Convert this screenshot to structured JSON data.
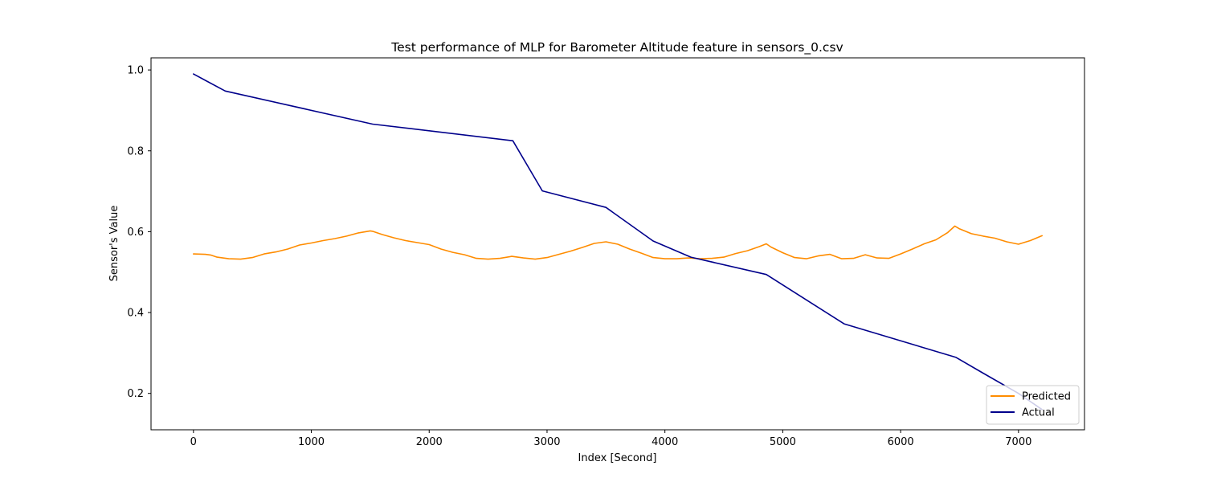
{
  "chart_data": {
    "type": "line",
    "title": "Test performance of MLP for Barometer Altitude feature in sensors_0.csv",
    "xlabel": "Index [Second]",
    "ylabel": "Sensor's Value",
    "xlim": [
      -360,
      7560
    ],
    "ylim": [
      0.11,
      1.03
    ],
    "xticks": [
      0,
      1000,
      2000,
      3000,
      4000,
      5000,
      6000,
      7000
    ],
    "yticks": [
      0.2,
      0.4,
      0.6,
      0.8,
      1.0
    ],
    "xtick_labels": [
      "0",
      "1000",
      "2000",
      "3000",
      "4000",
      "5000",
      "6000",
      "7000"
    ],
    "ytick_labels": [
      "0.2",
      "0.4",
      "0.6",
      "0.8",
      "1.0"
    ],
    "grid": false,
    "legend_position": "lower-right",
    "series": [
      {
        "name": "Predicted",
        "color": "#ff8c00",
        "x": [
          0,
          100,
          150,
          200,
          300,
          400,
          500,
          600,
          700,
          800,
          900,
          1000,
          1100,
          1200,
          1300,
          1400,
          1500,
          1520,
          1600,
          1700,
          1800,
          1900,
          2000,
          2100,
          2200,
          2300,
          2400,
          2500,
          2600,
          2700,
          2800,
          2900,
          3000,
          3100,
          3200,
          3300,
          3400,
          3500,
          3600,
          3700,
          3800,
          3900,
          4000,
          4100,
          4200,
          4300,
          4400,
          4500,
          4600,
          4700,
          4800,
          4860,
          4900,
          5000,
          5100,
          5200,
          5300,
          5400,
          5500,
          5600,
          5700,
          5800,
          5900,
          6000,
          6100,
          6200,
          6300,
          6400,
          6460,
          6500,
          6600,
          6700,
          6800,
          6900,
          7000,
          7100,
          7200
        ],
        "y": [
          0.545,
          0.544,
          0.542,
          0.537,
          0.533,
          0.532,
          0.536,
          0.545,
          0.55,
          0.557,
          0.567,
          0.572,
          0.578,
          0.583,
          0.589,
          0.597,
          0.602,
          0.601,
          0.593,
          0.585,
          0.578,
          0.573,
          0.568,
          0.557,
          0.549,
          0.543,
          0.534,
          0.532,
          0.534,
          0.539,
          0.535,
          0.532,
          0.536,
          0.544,
          0.552,
          0.561,
          0.571,
          0.575,
          0.569,
          0.557,
          0.547,
          0.536,
          0.533,
          0.533,
          0.535,
          0.533,
          0.534,
          0.537,
          0.546,
          0.553,
          0.563,
          0.57,
          0.562,
          0.548,
          0.536,
          0.533,
          0.54,
          0.544,
          0.533,
          0.534,
          0.543,
          0.535,
          0.534,
          0.545,
          0.557,
          0.57,
          0.58,
          0.598,
          0.614,
          0.607,
          0.595,
          0.589,
          0.584,
          0.575,
          0.569,
          0.578,
          0.59
        ]
      },
      {
        "name": "Actual",
        "color": "#00008b",
        "x": [
          0,
          270,
          1520,
          2710,
          2960,
          3500,
          3900,
          4220,
          4860,
          5520,
          6470,
          6700,
          7000,
          7200
        ],
        "y": [
          0.99,
          0.948,
          0.866,
          0.825,
          0.701,
          0.66,
          0.577,
          0.537,
          0.494,
          0.372,
          0.289,
          0.25,
          0.2,
          0.16
        ]
      }
    ]
  }
}
